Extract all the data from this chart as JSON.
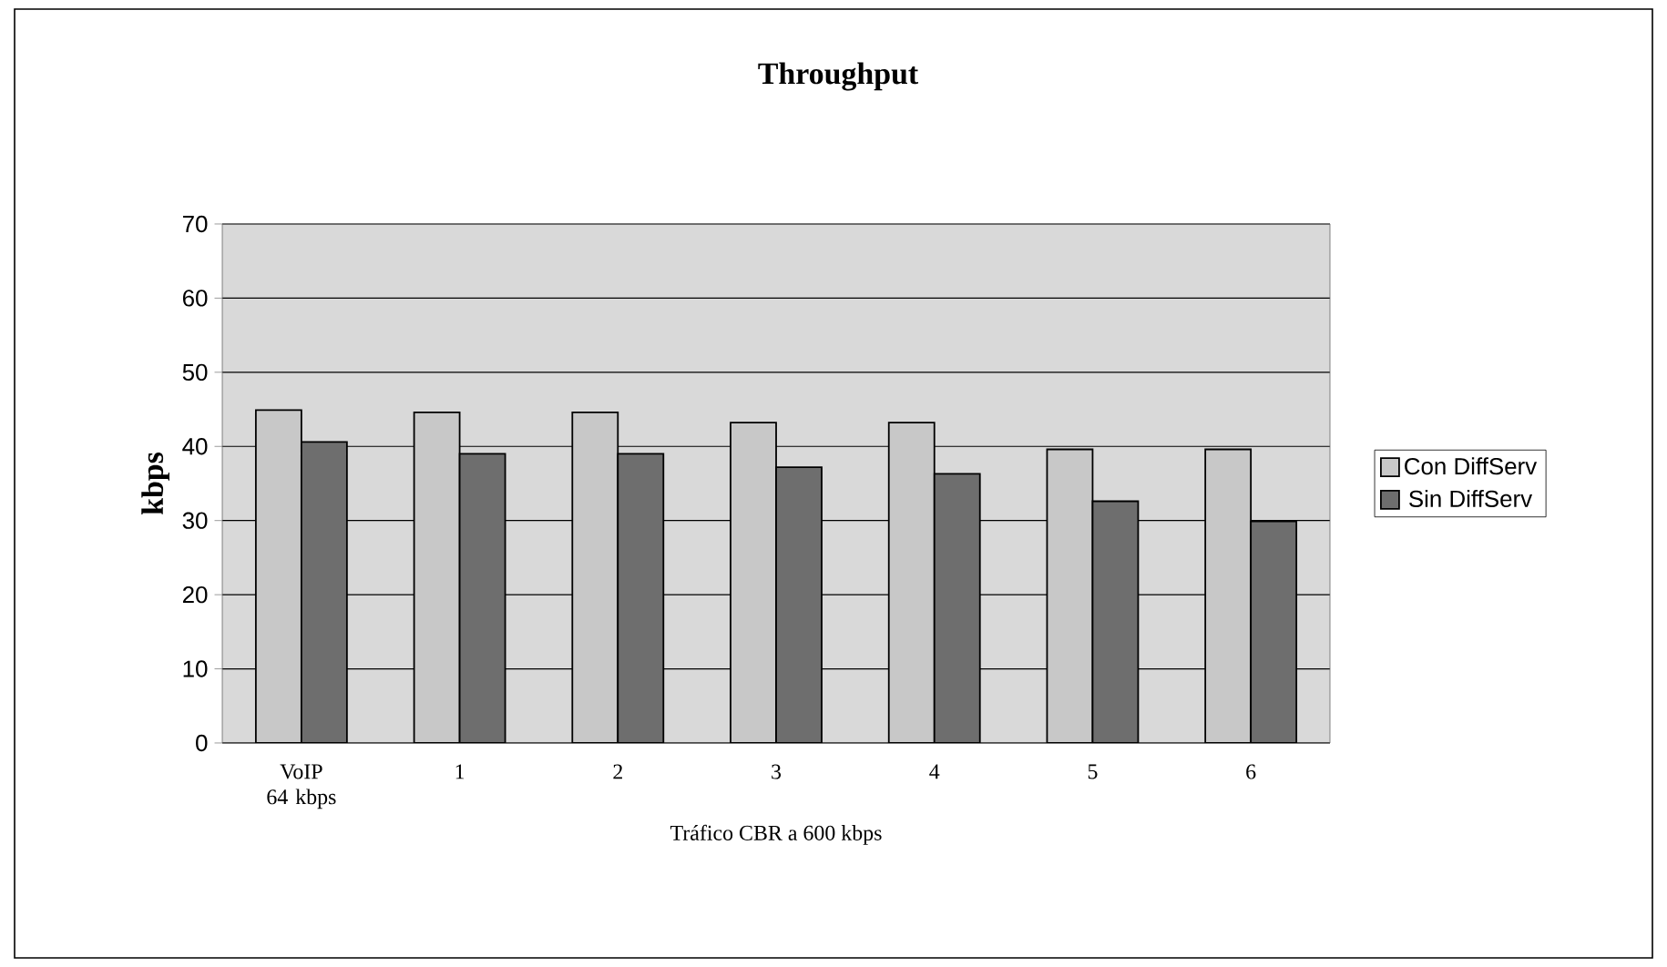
{
  "chart_data": {
    "type": "bar",
    "title": "Throughput",
    "xlabel": "Tráfico CBR a 600 kbps",
    "ylabel": "kbps",
    "categories": [
      "VoIP 64 kbps",
      "1",
      "2",
      "3",
      "4",
      "5",
      "6"
    ],
    "series": [
      {
        "name": "Con DiffServ",
        "color": "#c8c8c8",
        "values": [
          44.9,
          44.6,
          44.6,
          43.2,
          43.2,
          39.6,
          39.6
        ]
      },
      {
        "name": "Sin DiffServ",
        "color": "#6e6e6e",
        "values": [
          40.6,
          39.0,
          39.0,
          37.2,
          36.3,
          32.6,
          29.9
        ]
      }
    ],
    "ylim": [
      0,
      70
    ],
    "yticks": [
      0,
      10,
      20,
      30,
      40,
      50,
      60,
      70
    ],
    "grid": "y",
    "legend": "right"
  }
}
